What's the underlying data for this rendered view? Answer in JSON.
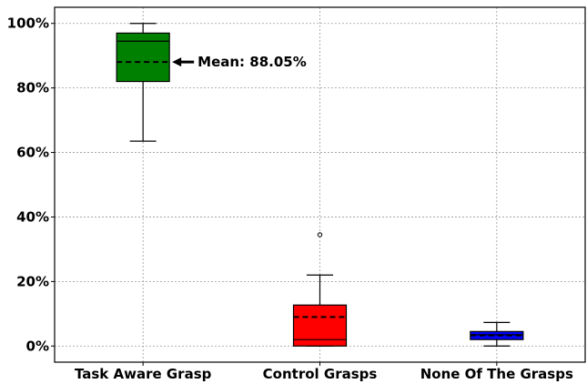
{
  "chart_data": {
    "type": "box",
    "categories": [
      "Task Aware Grasp",
      "Control Grasps",
      "None Of The Grasps"
    ],
    "ylim": [
      -5,
      105
    ],
    "yticks": [
      0,
      20,
      40,
      60,
      80,
      100
    ],
    "ytick_labels": [
      "0%",
      "20%",
      "40%",
      "60%",
      "80%",
      "100%"
    ],
    "grid": true,
    "boxes": [
      {
        "name": "Task Aware Grasp",
        "color": "#008000",
        "whisker_low": 63.5,
        "q1": 82,
        "median": 94.5,
        "q3": 97,
        "whisker_high": 100,
        "mean": 88.05,
        "outliers": []
      },
      {
        "name": "Control Grasps",
        "color": "#ff0000",
        "whisker_low": 0,
        "q1": 0,
        "median": 2,
        "q3": 12.7,
        "whisker_high": 22,
        "mean": 9,
        "outliers": [
          34.5
        ]
      },
      {
        "name": "None Of The Grasps",
        "color": "#0000ff",
        "whisker_low": 0,
        "q1": 2,
        "median": 3.5,
        "q3": 4.5,
        "whisker_high": 7.3,
        "mean": 3.3,
        "outliers": []
      }
    ],
    "annotation": {
      "text": "Mean: 88.05%",
      "box_index": 0
    }
  }
}
